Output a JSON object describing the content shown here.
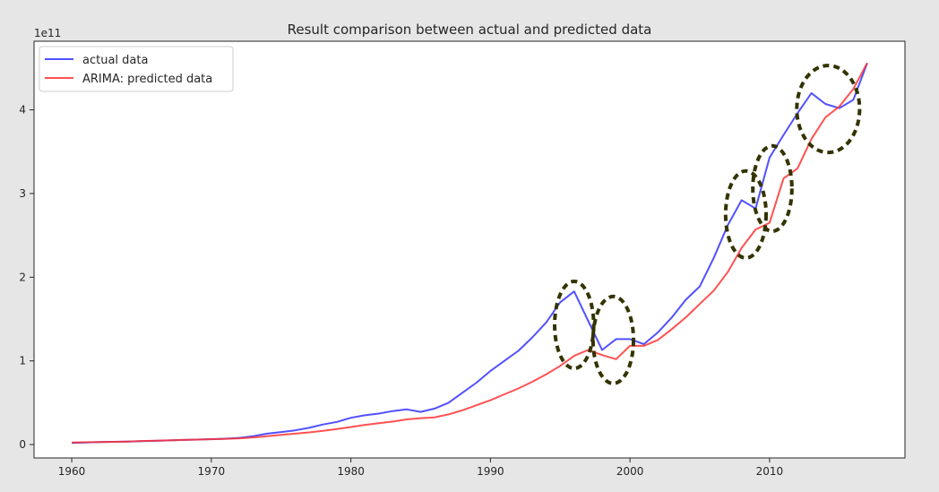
{
  "chart_data": {
    "type": "line",
    "title": "Result comparison between actual and predicted data",
    "xlabel": "",
    "ylabel": "",
    "y_offset_label": "1e11",
    "y_scale": 100000000000.0,
    "xlim": [
      1957.3,
      2019.7
    ],
    "ylim": [
      -16000000000.0,
      482000000000.0
    ],
    "x_ticks": [
      1960,
      1970,
      1980,
      1990,
      2000,
      2010
    ],
    "x_tick_labels": [
      "1960",
      "1970",
      "1980",
      "1990",
      "2000",
      "2010"
    ],
    "y_ticks": [
      0,
      100000000000.0,
      200000000000.0,
      300000000000.0,
      400000000000.0
    ],
    "y_tick_labels": [
      "0",
      "1",
      "2",
      "3",
      "4"
    ],
    "grid": false,
    "legend_placement": "top-left",
    "series": [
      {
        "name": "actual data",
        "color": "#3333ff",
        "x": [
          1960,
          1961,
          1962,
          1963,
          1964,
          1965,
          1966,
          1967,
          1968,
          1969,
          1970,
          1971,
          1972,
          1973,
          1974,
          1975,
          1976,
          1977,
          1978,
          1979,
          1980,
          1981,
          1982,
          1983,
          1984,
          1985,
          1986,
          1987,
          1988,
          1989,
          1990,
          1991,
          1992,
          1993,
          1994,
          1995,
          1996,
          1997,
          1998,
          1999,
          2000,
          2001,
          2002,
          2003,
          2004,
          2005,
          2006,
          2007,
          2008,
          2009,
          2010,
          2011,
          2012,
          2013,
          2014,
          2015,
          2016,
          2017
        ],
        "y": [
          2000000000.0,
          2500000000.0,
          3000000000.0,
          3300000000.0,
          3500000000.0,
          4000000000.0,
          4500000000.0,
          5000000000.0,
          5500000000.0,
          6000000000.0,
          6500000000.0,
          7000000000.0,
          8000000000.0,
          10000000000.0,
          13000000000.0,
          15000000000.0,
          17000000000.0,
          20000000000.0,
          24000000000.0,
          27000000000.0,
          32000000000.0,
          35000000000.0,
          37000000000.0,
          40000000000.0,
          42000000000.0,
          39000000000.0,
          43000000000.0,
          50000000000.0,
          62000000000.0,
          74000000000.0,
          88000000000.0,
          100000000000.0,
          112000000000.0,
          128000000000.0,
          146000000000.0,
          170000000000.0,
          183000000000.0,
          148000000000.0,
          113000000000.0,
          126000000000.0,
          126000000000.0,
          120000000000.0,
          134000000000.0,
          152000000000.0,
          173000000000.0,
          189000000000.0,
          223000000000.0,
          262000000000.0,
          292000000000.0,
          282000000000.0,
          343000000000.0,
          370000000000.0,
          396000000000.0,
          420000000000.0,
          407000000000.0,
          402000000000.0,
          412000000000.0,
          456000000000.0
        ]
      },
      {
        "name": "ARIMA: predicted data",
        "color": "#ff3333",
        "x": [
          1960,
          1961,
          1962,
          1963,
          1964,
          1965,
          1966,
          1967,
          1968,
          1969,
          1970,
          1971,
          1972,
          1973,
          1974,
          1975,
          1976,
          1977,
          1978,
          1979,
          1980,
          1981,
          1982,
          1983,
          1984,
          1985,
          1986,
          1987,
          1988,
          1989,
          1990,
          1991,
          1992,
          1993,
          1994,
          1995,
          1996,
          1997,
          1998,
          1999,
          2000,
          2001,
          2002,
          2003,
          2004,
          2005,
          2006,
          2007,
          2008,
          2009,
          2010,
          2011,
          2012,
          2013,
          2014,
          2015,
          2016,
          2017
        ],
        "y": [
          2500000000.0,
          2700000000.0,
          3000000000.0,
          3300000000.0,
          3600000000.0,
          4200000000.0,
          4600000000.0,
          5000000000.0,
          5500000000.0,
          6000000000.0,
          6400000000.0,
          6800000000.0,
          7500000000.0,
          8500000000.0,
          10000000000.0,
          11500000000.0,
          13000000000.0,
          14500000000.0,
          16500000000.0,
          18500000000.0,
          21000000000.0,
          23500000000.0,
          25500000000.0,
          27500000000.0,
          30000000000.0,
          31500000000.0,
          32500000000.0,
          36000000000.0,
          41000000000.0,
          47000000000.0,
          53000000000.0,
          60000000000.0,
          67000000000.0,
          75000000000.0,
          84000000000.0,
          94000000000.0,
          106000000000.0,
          113000000000.0,
          107000000000.0,
          102000000000.0,
          118000000000.0,
          118000000000.0,
          125000000000.0,
          138000000000.0,
          152000000000.0,
          168000000000.0,
          184000000000.0,
          206000000000.0,
          235000000000.0,
          257000000000.0,
          265000000000.0,
          318000000000.0,
          330000000000.0,
          365000000000.0,
          391000000000.0,
          404000000000.0,
          425000000000.0,
          456000000000.0
        ]
      }
    ],
    "highlight_regions": [
      {
        "x_center": 1996.0,
        "y_center": 143000000000.0,
        "x_radius": 1.4,
        "y_radius": 52000000000.0
      },
      {
        "x_center": 1998.8,
        "y_center": 125000000000.0,
        "x_radius": 1.45,
        "y_radius": 52000000000.0
      },
      {
        "x_center": 2008.3,
        "y_center": 275000000000.0,
        "x_radius": 1.45,
        "y_radius": 52000000000.0
      },
      {
        "x_center": 2010.2,
        "y_center": 306000000000.0,
        "x_radius": 1.4,
        "y_radius": 51000000000.0
      },
      {
        "x_center": 2014.2,
        "y_center": 401000000000.0,
        "x_radius": 2.25,
        "y_radius": 52000000000.0
      }
    ],
    "highlight_color": "#333300"
  }
}
